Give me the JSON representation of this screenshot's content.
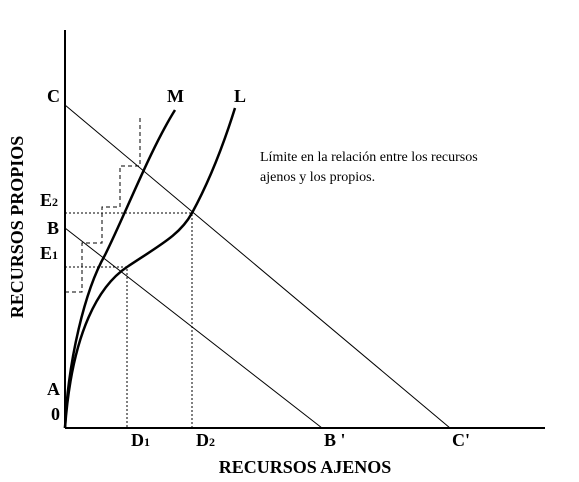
{
  "axes": {
    "y_label": "RECURSOS PROPIOS",
    "x_label": "RECURSOS AJENOS"
  },
  "curves": {
    "m": "M",
    "l": "L"
  },
  "points": {
    "c": "C",
    "e2": {
      "main": "E",
      "sub": "2"
    },
    "b": "B",
    "e1": {
      "main": "E",
      "sub": "1"
    },
    "a": "A",
    "origin": "0",
    "d1": {
      "main": "D",
      "sub": "1"
    },
    "d2": {
      "main": "D",
      "sub": "2"
    },
    "b_prime": "B '",
    "c_prime": "C'"
  },
  "note": [
    "Límite en la relación entre los recursos",
    "ajenos y los propios."
  ]
}
